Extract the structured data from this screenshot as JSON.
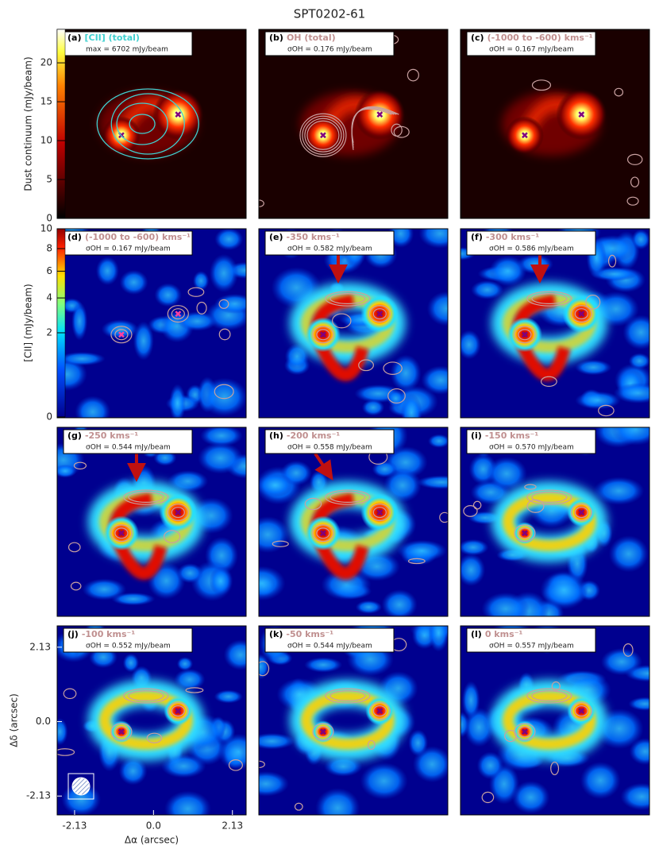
{
  "title": "SPT0202-61",
  "colorbars": [
    {
      "label": "Dust continuum (mJy/beam)",
      "lim": [
        0,
        24.3
      ],
      "ticks": [
        0,
        5,
        10,
        15,
        20
      ]
    },
    {
      "label": "[CII] (mJy/beam)",
      "lim": [
        0,
        10
      ],
      "ticks": [
        0,
        2,
        4,
        6,
        8,
        10
      ],
      "scale": "sqrt"
    }
  ],
  "axes": {
    "xlabel": "Δα (arcsec)",
    "ylabel": "Δδ (arcsec)",
    "xlim": [
      -2.6,
      2.5
    ],
    "ylim": [
      -2.67,
      2.74
    ],
    "xticks": [
      -2.13,
      {
        "value": 0,
        "label": "0.0"
      },
      2.13
    ],
    "yticks": [
      2.13,
      {
        "value": 0,
        "label": "0.0"
      },
      -2.13
    ]
  },
  "panels": [
    {
      "tag": "(a)",
      "title": "[CII] (total)",
      "note": "max = 6702 mJy/beam"
    },
    {
      "tag": "(b)",
      "title": "OH (total)",
      "note": "σOH = 0.176 mJy/beam"
    },
    {
      "tag": "(c)",
      "title": "(-1000 to -600) kms⁻¹",
      "note": "σOH = 0.167 mJy/beam"
    },
    {
      "tag": "(d)",
      "title": "(-1000 to -600) kms⁻¹",
      "note": "σOH = 0.167 mJy/beam"
    },
    {
      "tag": "(e)",
      "title": "-350 kms⁻¹",
      "note": "σOH = 0.582 mJy/beam"
    },
    {
      "tag": "(f)",
      "title": "-300 kms⁻¹",
      "note": "σOH = 0.586 mJy/beam"
    },
    {
      "tag": "(g)",
      "title": "-250 kms⁻¹",
      "note": "σOH = 0.544 mJy/beam"
    },
    {
      "tag": "(h)",
      "title": "-200 kms⁻¹",
      "note": "σOH = 0.558 mJy/beam"
    },
    {
      "tag": "(i)",
      "title": "-150 kms⁻¹",
      "note": "σOH = 0.570 mJy/beam"
    },
    {
      "tag": "(j)",
      "title": "-100 kms⁻¹",
      "note": "σOH = 0.552 mJy/beam"
    },
    {
      "tag": "(k)",
      "title": "-50 kms⁻¹",
      "note": "σOH = 0.544 mJy/beam"
    },
    {
      "tag": "(l)",
      "title": "0 kms⁻¹",
      "note": "σOH = 0.557 mJy/beam"
    }
  ]
}
